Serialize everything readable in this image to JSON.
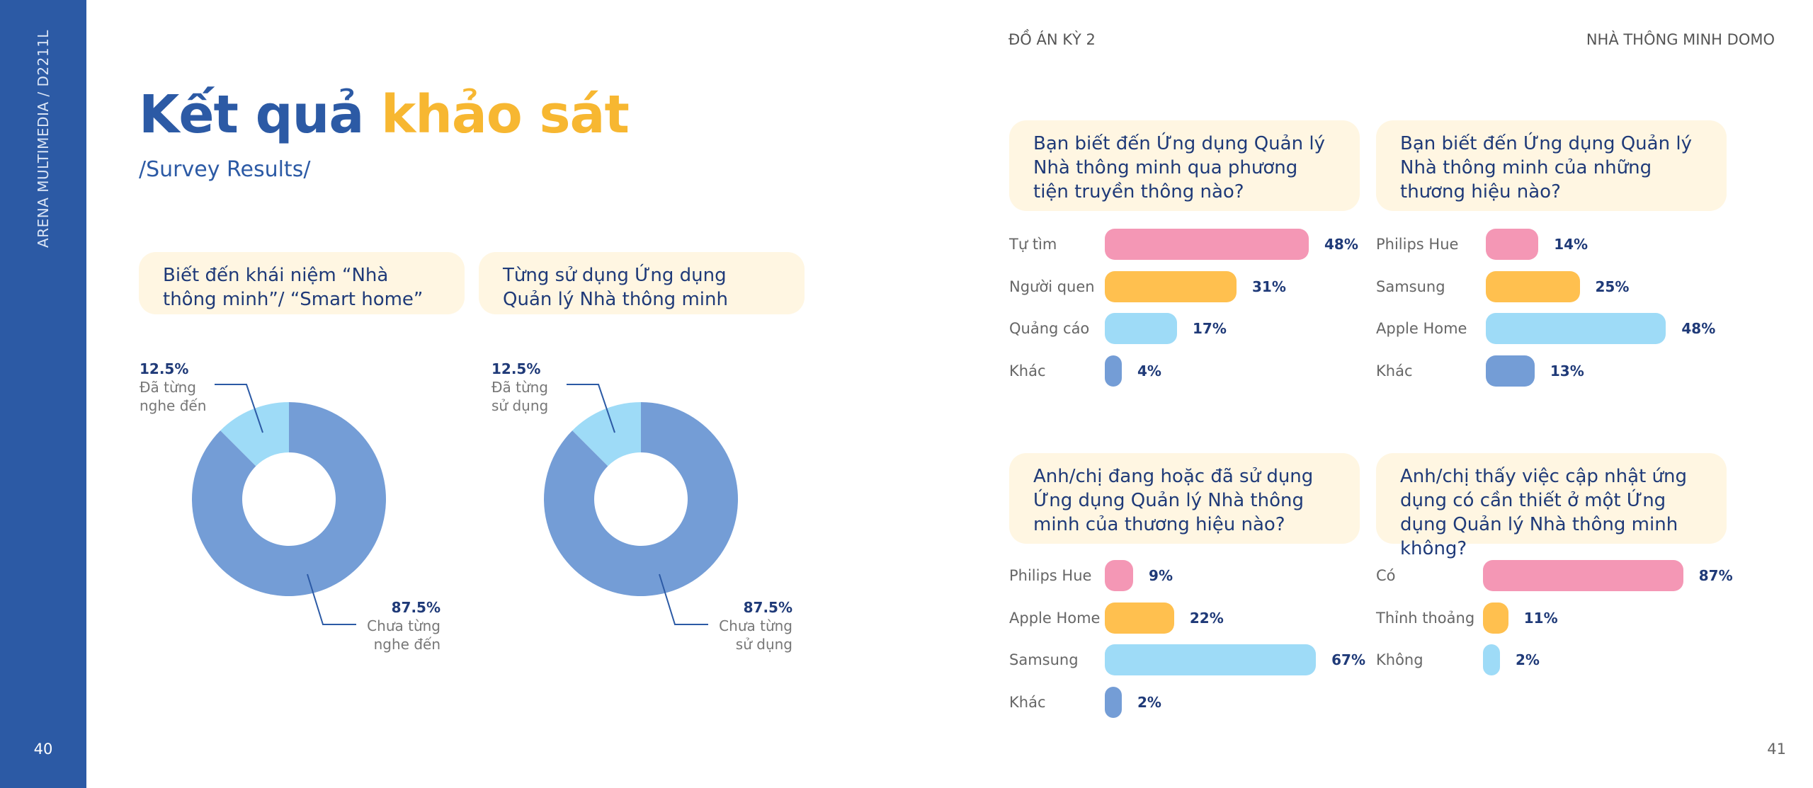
{
  "colors": {
    "sidebar": "#2c5aa5",
    "pink": "#f497b5",
    "orange": "#ffc04f",
    "light_blue": "#9edbf7",
    "mid_blue": "#749dd6",
    "dark_blue": "#2c5aa5",
    "accent_yellow": "#f7b731",
    "box_bg": "#fff6e2"
  },
  "sidebar": {
    "vertical_text": "ARENA MULTIMEDIA / D2211L",
    "page_left": "40"
  },
  "header": {
    "left": "ĐỒ ÁN KỲ 2",
    "right": "NHÀ THÔNG MINH DOMO"
  },
  "page_right": "41",
  "title": {
    "part1": "Kết quả",
    "part2": "khảo sát"
  },
  "subtitle": "/Survey Results/",
  "chart_data": [
    {
      "type": "pie",
      "title": "Biết đến khái niệm “Nhà thông minh”/ “Smart home”",
      "slices": [
        {
          "label_line1": "Đã từng",
          "label_line2": "nghe đến",
          "pct_text": "12.5%",
          "value": 12.5,
          "color": "#9edbf7"
        },
        {
          "label_line1": "Chưa từng",
          "label_line2": "nghe đến",
          "pct_text": "87.5%",
          "value": 87.5,
          "color": "#749dd6"
        }
      ]
    },
    {
      "type": "pie",
      "title": "Từng sử dụng Ứng dụng Quản lý Nhà thông minh",
      "slices": [
        {
          "label_line1": "Đã từng",
          "label_line2": "sử dụng",
          "pct_text": "12.5%",
          "value": 12.5,
          "color": "#9edbf7"
        },
        {
          "label_line1": "Chưa từng",
          "label_line2": "sử dụng",
          "pct_text": "87.5%",
          "value": 87.5,
          "color": "#749dd6"
        }
      ]
    },
    {
      "type": "bar",
      "title": "Bạn biết đến Ứng dụng Quản lý Nhà thông minh qua phương tiện truyền thông nào?",
      "categories": [
        "Tự tìm",
        "Người quen",
        "Quảng cáo",
        "Khác"
      ],
      "values": [
        48,
        31,
        17,
        4
      ],
      "labels": [
        "48%",
        "31%",
        "17%",
        "4%"
      ],
      "colors": [
        "#f497b5",
        "#ffc04f",
        "#9edbf7",
        "#749dd6"
      ]
    },
    {
      "type": "bar",
      "title": "Bạn biết đến Ứng dụng Quản lý Nhà thông minh của những thương hiệu nào?",
      "categories": [
        "Philips Hue",
        "Samsung",
        "Apple Home",
        "Khác"
      ],
      "values": [
        14,
        25,
        48,
        13
      ],
      "labels": [
        "14%",
        "25%",
        "48%",
        "13%"
      ],
      "colors": [
        "#f497b5",
        "#ffc04f",
        "#9edbf7",
        "#749dd6"
      ]
    },
    {
      "type": "bar",
      "title": "Anh/chị đang hoặc đã sử dụng Ứng dụng Quản lý Nhà thông minh của thương hiệu nào?",
      "categories": [
        "Philips Hue",
        "Apple Home",
        "Samsung",
        "Khác"
      ],
      "values": [
        9,
        22,
        67,
        2
      ],
      "labels": [
        "9%",
        "22%",
        "67%",
        "2%"
      ],
      "colors": [
        "#f497b5",
        "#ffc04f",
        "#9edbf7",
        "#749dd6"
      ]
    },
    {
      "type": "bar",
      "title": "Anh/chị thấy việc cập nhật ứng dụng có cần thiết ở một Ứng dụng Quản lý Nhà thông minh không?",
      "categories": [
        "Có",
        "Thỉnh thoảng",
        "Không"
      ],
      "values": [
        87,
        11,
        2
      ],
      "labels": [
        "87%",
        "11%",
        "2%"
      ],
      "colors": [
        "#f497b5",
        "#ffc04f",
        "#9edbf7"
      ]
    }
  ]
}
